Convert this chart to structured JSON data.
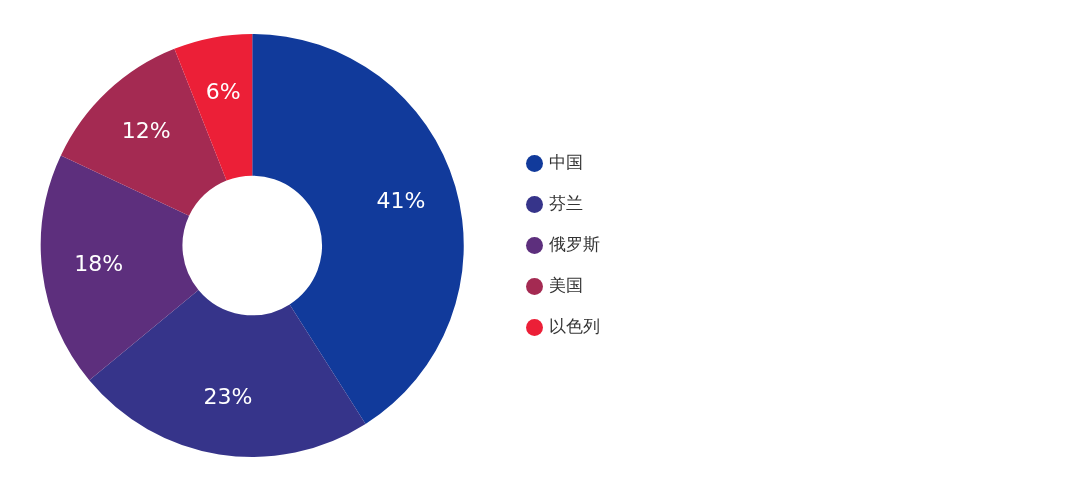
{
  "chart_data": {
    "type": "donut",
    "categories": [
      "中国",
      "芬兰",
      "俄罗斯",
      "美国",
      "以色列"
    ],
    "values": [
      41,
      23,
      18,
      12,
      6
    ],
    "colors": [
      "#113a9b",
      "#36348a",
      "#5d2f7d",
      "#a42a52",
      "#ec1f37"
    ],
    "value_labels": [
      "41%",
      "23%",
      "18%",
      "12%",
      "6%"
    ],
    "legend": "right"
  }
}
